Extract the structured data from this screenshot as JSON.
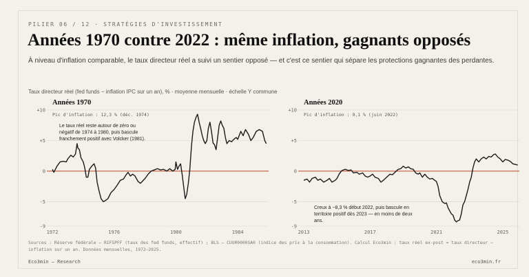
{
  "header": {
    "kicker": "PILIER 06 / 12   ·   STRATÉGIES D'INVESTISSEMENT",
    "title": "Années 1970 contre 2022 : même inflation, gagnants opposés",
    "subtitle": "À niveau d'inflation comparable, le taux directeur réel a suivi un sentier opposé — et c'est ce sentier qui sépare les protections gagnantes des perdantes."
  },
  "chart_caption": "Taux directeur réel (fed funds − inflation IPC sur un an), % · moyenne mensuelle · échelle Y commune",
  "colors": {
    "line": "#1a1a1a",
    "zero_line": "#c0583c",
    "grid": "#e3ded3",
    "background": "#f4f1ea"
  },
  "chart_data": [
    {
      "type": "line",
      "title": "Années 1970",
      "peak_label": "Pic d'inflation : 12,3 % (déc. 1974)",
      "annotation": [
        "Le taux réel reste autour de zéro ou",
        "négatif de 1974 à 1980, puis bascule",
        "franchement positif avec Volcker (1981)."
      ],
      "xlim": [
        1972,
        1986
      ],
      "x_ticks": [
        1972,
        1976,
        1980,
        1984
      ],
      "ylim": [
        -9,
        10
      ],
      "y_ticks": [
        -9,
        -5,
        0,
        5,
        10
      ],
      "y_tick_labels": [
        "-9",
        "-5",
        "0",
        "+5",
        "+10"
      ],
      "grid": true,
      "zero_line": true,
      "points": [
        [
          1972.0,
          0.3
        ],
        [
          1972.1,
          -0.2
        ],
        [
          1972.3,
          0.8
        ],
        [
          1972.5,
          1.5
        ],
        [
          1972.7,
          1.6
        ],
        [
          1972.9,
          1.5
        ],
        [
          1973.0,
          2.0
        ],
        [
          1973.2,
          2.6
        ],
        [
          1973.35,
          2.3
        ],
        [
          1973.5,
          2.8
        ],
        [
          1973.6,
          4.5
        ],
        [
          1973.65,
          3.8
        ],
        [
          1973.75,
          3.5
        ],
        [
          1973.85,
          2.2
        ],
        [
          1974.0,
          1.5
        ],
        [
          1974.1,
          0.5
        ],
        [
          1974.2,
          -1.0
        ],
        [
          1974.3,
          -1.0
        ],
        [
          1974.4,
          0.3
        ],
        [
          1974.55,
          0.8
        ],
        [
          1974.7,
          1.2
        ],
        [
          1974.8,
          0.5
        ],
        [
          1974.9,
          -1.8
        ],
        [
          1975.0,
          -3.0
        ],
        [
          1975.15,
          -4.5
        ],
        [
          1975.3,
          -5.0
        ],
        [
          1975.45,
          -4.8
        ],
        [
          1975.6,
          -4.5
        ],
        [
          1975.8,
          -3.5
        ],
        [
          1976.0,
          -3.0
        ],
        [
          1976.2,
          -2.3
        ],
        [
          1976.4,
          -1.5
        ],
        [
          1976.6,
          -1.3
        ],
        [
          1976.75,
          -0.7
        ],
        [
          1976.9,
          -0.2
        ],
        [
          1977.05,
          -0.8
        ],
        [
          1977.2,
          -0.5
        ],
        [
          1977.35,
          -0.8
        ],
        [
          1977.55,
          -1.7
        ],
        [
          1977.7,
          -2.0
        ],
        [
          1977.85,
          -1.6
        ],
        [
          1978.0,
          -1.2
        ],
        [
          1978.2,
          -0.5
        ],
        [
          1978.4,
          0.0
        ],
        [
          1978.6,
          0.2
        ],
        [
          1978.8,
          0.4
        ],
        [
          1979.0,
          0.2
        ],
        [
          1979.2,
          0.3
        ],
        [
          1979.4,
          0.0
        ],
        [
          1979.6,
          0.4
        ],
        [
          1979.8,
          0.0
        ],
        [
          1979.95,
          0.3
        ],
        [
          1980.0,
          1.5
        ],
        [
          1980.1,
          0.3
        ],
        [
          1980.2,
          0.8
        ],
        [
          1980.3,
          1.2
        ],
        [
          1980.4,
          -0.5
        ],
        [
          1980.5,
          -2.5
        ],
        [
          1980.6,
          -4.5
        ],
        [
          1980.7,
          -3.8
        ],
        [
          1980.8,
          -2.0
        ],
        [
          1980.9,
          0.3
        ],
        [
          1981.0,
          4.0
        ],
        [
          1981.1,
          6.5
        ],
        [
          1981.2,
          8.0
        ],
        [
          1981.3,
          8.8
        ],
        [
          1981.4,
          9.3
        ],
        [
          1981.5,
          8.0
        ],
        [
          1981.6,
          7.0
        ],
        [
          1981.7,
          5.8
        ],
        [
          1981.8,
          5.0
        ],
        [
          1981.9,
          4.5
        ],
        [
          1982.0,
          5.0
        ],
        [
          1982.1,
          7.0
        ],
        [
          1982.2,
          8.0
        ],
        [
          1982.3,
          6.5
        ],
        [
          1982.4,
          4.6
        ],
        [
          1982.5,
          4.3
        ],
        [
          1982.6,
          3.5
        ],
        [
          1982.7,
          5.5
        ],
        [
          1982.8,
          7.5
        ],
        [
          1982.9,
          8.2
        ],
        [
          1983.0,
          7.5
        ],
        [
          1983.1,
          7.0
        ],
        [
          1983.2,
          5.5
        ],
        [
          1983.3,
          4.5
        ],
        [
          1983.45,
          5.0
        ],
        [
          1983.6,
          4.8
        ],
        [
          1983.75,
          5.2
        ],
        [
          1983.9,
          5.5
        ],
        [
          1984.0,
          5.2
        ],
        [
          1984.2,
          6.5
        ],
        [
          1984.35,
          5.8
        ],
        [
          1984.5,
          6.8
        ],
        [
          1984.7,
          6.0
        ],
        [
          1984.85,
          5.0
        ],
        [
          1985.0,
          5.5
        ],
        [
          1985.2,
          6.5
        ],
        [
          1985.4,
          6.8
        ],
        [
          1985.6,
          6.5
        ],
        [
          1985.75,
          5.0
        ],
        [
          1985.85,
          4.5
        ]
      ]
    },
    {
      "type": "line",
      "title": "Années 2020",
      "peak_label": "Pic d'inflation : 9,1 % (juin 2022)",
      "annotation": [
        "Creux à −8,3 % début 2022, puis bascule en",
        "territoire positif dès 2023 — en moins de deux",
        "ans."
      ],
      "xlim": [
        2013,
        2026
      ],
      "x_ticks": [
        2013,
        2017,
        2021,
        2025
      ],
      "ylim": [
        -9,
        10
      ],
      "y_ticks": [
        -9,
        -5,
        0,
        5,
        10
      ],
      "y_tick_labels": [
        "-9",
        "-5",
        "0",
        "+5",
        "+10"
      ],
      "grid": true,
      "zero_line": true,
      "points": [
        [
          2013.0,
          -1.5
        ],
        [
          2013.2,
          -1.3
        ],
        [
          2013.35,
          -1.8
        ],
        [
          2013.5,
          -1.2
        ],
        [
          2013.7,
          -1.0
        ],
        [
          2013.85,
          -1.5
        ],
        [
          2014.0,
          -1.3
        ],
        [
          2014.2,
          -1.8
        ],
        [
          2014.4,
          -1.5
        ],
        [
          2014.55,
          -1.2
        ],
        [
          2014.7,
          -1.8
        ],
        [
          2014.9,
          -1.5
        ],
        [
          2015.0,
          -1.2
        ],
        [
          2015.15,
          -0.4
        ],
        [
          2015.3,
          0.1
        ],
        [
          2015.5,
          0.3
        ],
        [
          2015.7,
          0.1
        ],
        [
          2015.85,
          0.2
        ],
        [
          2016.0,
          -0.3
        ],
        [
          2016.2,
          -0.2
        ],
        [
          2016.35,
          -0.5
        ],
        [
          2016.55,
          -0.3
        ],
        [
          2016.7,
          -0.8
        ],
        [
          2016.85,
          -1.0
        ],
        [
          2017.0,
          -0.8
        ],
        [
          2017.15,
          -0.5
        ],
        [
          2017.3,
          -1.0
        ],
        [
          2017.5,
          -1.2
        ],
        [
          2017.65,
          -1.8
        ],
        [
          2017.8,
          -1.5
        ],
        [
          2018.0,
          -1.0
        ],
        [
          2018.2,
          -0.5
        ],
        [
          2018.35,
          -0.6
        ],
        [
          2018.5,
          -0.2
        ],
        [
          2018.7,
          0.3
        ],
        [
          2018.85,
          0.4
        ],
        [
          2019.0,
          0.8
        ],
        [
          2019.15,
          0.5
        ],
        [
          2019.3,
          0.7
        ],
        [
          2019.45,
          0.4
        ],
        [
          2019.6,
          0.3
        ],
        [
          2019.75,
          -0.3
        ],
        [
          2019.9,
          -0.5
        ],
        [
          2020.0,
          -0.3
        ],
        [
          2020.15,
          -1.0
        ],
        [
          2020.3,
          -0.5
        ],
        [
          2020.45,
          -1.0
        ],
        [
          2020.6,
          -1.3
        ],
        [
          2020.75,
          -1.2
        ],
        [
          2020.9,
          -1.5
        ],
        [
          2021.0,
          -1.7
        ],
        [
          2021.1,
          -2.5
        ],
        [
          2021.2,
          -4.0
        ],
        [
          2021.35,
          -5.0
        ],
        [
          2021.5,
          -5.3
        ],
        [
          2021.6,
          -5.2
        ],
        [
          2021.7,
          -6.0
        ],
        [
          2021.8,
          -6.5
        ],
        [
          2021.9,
          -7.0
        ],
        [
          2022.0,
          -7.2
        ],
        [
          2022.1,
          -8.0
        ],
        [
          2022.2,
          -8.3
        ],
        [
          2022.3,
          -8.1
        ],
        [
          2022.4,
          -8.0
        ],
        [
          2022.5,
          -7.0
        ],
        [
          2022.6,
          -5.5
        ],
        [
          2022.7,
          -5.0
        ],
        [
          2022.8,
          -4.0
        ],
        [
          2022.9,
          -3.0
        ],
        [
          2023.0,
          -1.8
        ],
        [
          2023.1,
          -1.0
        ],
        [
          2023.2,
          0.5
        ],
        [
          2023.3,
          1.5
        ],
        [
          2023.4,
          2.0
        ],
        [
          2023.55,
          1.5
        ],
        [
          2023.7,
          2.0
        ],
        [
          2023.85,
          2.3
        ],
        [
          2024.0,
          2.0
        ],
        [
          2024.15,
          2.4
        ],
        [
          2024.3,
          2.3
        ],
        [
          2024.45,
          2.7
        ],
        [
          2024.55,
          2.8
        ],
        [
          2024.7,
          2.3
        ],
        [
          2024.85,
          2.0
        ],
        [
          2025.0,
          1.5
        ],
        [
          2025.15,
          1.9
        ],
        [
          2025.3,
          1.8
        ],
        [
          2025.45,
          1.6
        ],
        [
          2025.6,
          1.2
        ],
        [
          2025.75,
          1.1
        ],
        [
          2025.9,
          1.0
        ]
      ]
    }
  ],
  "source": "Sources : Réserve fédérale — RIFSPFF (taux des fed funds, effectif) ; BLS — CUUR0000SA0 (indice des prix à la consommation). Calcul Eco3min : taux réel ex-post = taux directeur − inflation sur un an. Données mensuelles, 1972–2025.",
  "footer": {
    "left": "Eco3min — Research",
    "right": "eco3min.fr"
  }
}
